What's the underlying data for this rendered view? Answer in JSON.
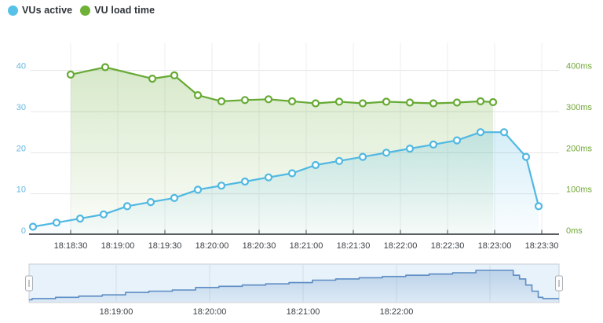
{
  "legend": {
    "items": [
      {
        "label": "VUs active",
        "color": "#57c1e8"
      },
      {
        "label": "VU load time",
        "color": "#6fb136"
      }
    ]
  },
  "chart_data": [
    {
      "type": "line",
      "role": "main-timeseries",
      "grid": true,
      "x_ticks": [
        "18:18:30",
        "18:19:00",
        "18:19:30",
        "18:20:00",
        "18:20:30",
        "18:21:00",
        "18:21:30",
        "18:22:00",
        "18:22:30",
        "18:23:00",
        "18:23:30"
      ],
      "left_axis": {
        "tick_values": [
          0,
          10,
          20,
          30,
          40
        ],
        "range": [
          0,
          46
        ],
        "label_color": "#66b7e1"
      },
      "right_axis": {
        "tick_labels": [
          "0ms",
          "100ms",
          "200ms",
          "300ms",
          "400ms"
        ],
        "tick_values": [
          0,
          100,
          200,
          300,
          400
        ],
        "range": [
          0,
          460
        ],
        "label_color": "#70a737"
      },
      "series": [
        {
          "name": "VU load time",
          "axis": "right",
          "color": "#67aa34",
          "unit": "ms",
          "points": [
            [
              "18:18:30",
              390
            ],
            [
              "18:18:52",
              408
            ],
            [
              "18:19:22",
              380
            ],
            [
              "18:19:36",
              388
            ],
            [
              "18:19:51",
              340
            ],
            [
              "18:20:06",
              325
            ],
            [
              "18:20:21",
              328
            ],
            [
              "18:20:36",
              330
            ],
            [
              "18:20:51",
              325
            ],
            [
              "18:21:06",
              320
            ],
            [
              "18:21:21",
              324
            ],
            [
              "18:21:36",
              320
            ],
            [
              "18:21:51",
              324
            ],
            [
              "18:22:06",
              322
            ],
            [
              "18:22:21",
              320
            ],
            [
              "18:22:36",
              322
            ],
            [
              "18:22:51",
              325
            ],
            [
              "18:22:59",
              323
            ]
          ]
        },
        {
          "name": "VUs active",
          "axis": "left",
          "color": "#50b8e2",
          "unit": "VUs",
          "points": [
            [
              "18:18:06",
              2
            ],
            [
              "18:18:21",
              3
            ],
            [
              "18:18:36",
              4
            ],
            [
              "18:18:51",
              5
            ],
            [
              "18:19:06",
              7
            ],
            [
              "18:19:21",
              8
            ],
            [
              "18:19:36",
              9
            ],
            [
              "18:19:51",
              11
            ],
            [
              "18:20:06",
              12
            ],
            [
              "18:20:21",
              13
            ],
            [
              "18:20:36",
              14
            ],
            [
              "18:20:51",
              15
            ],
            [
              "18:21:06",
              17
            ],
            [
              "18:21:21",
              18
            ],
            [
              "18:21:36",
              19
            ],
            [
              "18:21:51",
              20
            ],
            [
              "18:22:06",
              21
            ],
            [
              "18:22:21",
              22
            ],
            [
              "18:22:36",
              23
            ],
            [
              "18:22:51",
              25
            ],
            [
              "18:23:06",
              25
            ],
            [
              "18:23:20",
              19
            ],
            [
              "18:23:28",
              7
            ]
          ]
        }
      ]
    },
    {
      "type": "area-step",
      "role": "navigator-brush",
      "line_color": "#5d8cc4",
      "panel_fill": "#e7f2fa",
      "tick_labels": [
        "18:19:00",
        "18:20:00",
        "18:21:00",
        "18:22:00"
      ],
      "grid_ticks": [
        "18:19:00",
        "18:20:00",
        "18:21:00",
        "18:22:00",
        "18:23:00"
      ],
      "value_range": [
        0,
        25
      ],
      "points": [
        [
          "18:18:04",
          1
        ],
        [
          "18:18:06",
          2
        ],
        [
          "18:18:21",
          3
        ],
        [
          "18:18:36",
          4
        ],
        [
          "18:18:51",
          5
        ],
        [
          "18:19:06",
          7
        ],
        [
          "18:19:21",
          8
        ],
        [
          "18:19:36",
          9
        ],
        [
          "18:19:51",
          11
        ],
        [
          "18:20:06",
          12
        ],
        [
          "18:20:21",
          13
        ],
        [
          "18:20:36",
          14
        ],
        [
          "18:20:51",
          15
        ],
        [
          "18:21:06",
          17
        ],
        [
          "18:21:21",
          18
        ],
        [
          "18:21:36",
          19
        ],
        [
          "18:21:51",
          20
        ],
        [
          "18:22:06",
          21
        ],
        [
          "18:22:21",
          22
        ],
        [
          "18:22:36",
          23
        ],
        [
          "18:22:51",
          25
        ],
        [
          "18:23:12",
          25
        ],
        [
          "18:23:15",
          21
        ],
        [
          "18:23:19",
          18
        ],
        [
          "18:23:23",
          13
        ],
        [
          "18:23:27",
          8
        ],
        [
          "18:23:31",
          3
        ],
        [
          "18:23:34",
          2
        ],
        [
          "18:23:44",
          2
        ]
      ]
    }
  ]
}
